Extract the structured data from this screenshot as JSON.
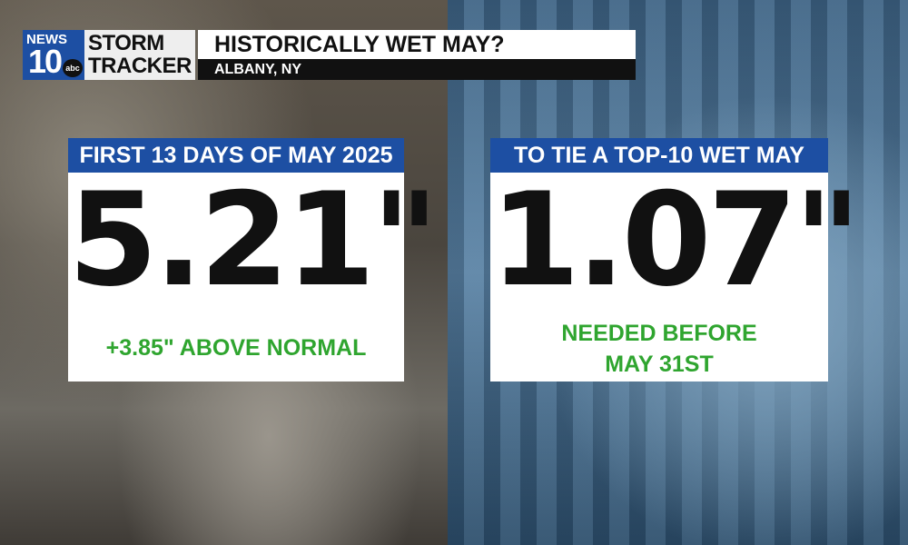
{
  "logo": {
    "station": "NEWS",
    "number": "10",
    "network": "abc",
    "brand": [
      "STORM",
      "TRACKER"
    ]
  },
  "header": {
    "title": "HISTORICALLY WET MAY?",
    "location": "ALBANY, NY"
  },
  "cards": [
    {
      "heading": "FIRST 13 DAYS OF MAY 2025",
      "value": "5.21\"",
      "note": [
        "+3.85\" ABOVE NORMAL"
      ]
    },
    {
      "heading": "TO TIE A TOP-10 WET MAY",
      "value": "1.07\"",
      "note": [
        "NEEDED BEFORE",
        "MAY 31ST"
      ]
    }
  ]
}
